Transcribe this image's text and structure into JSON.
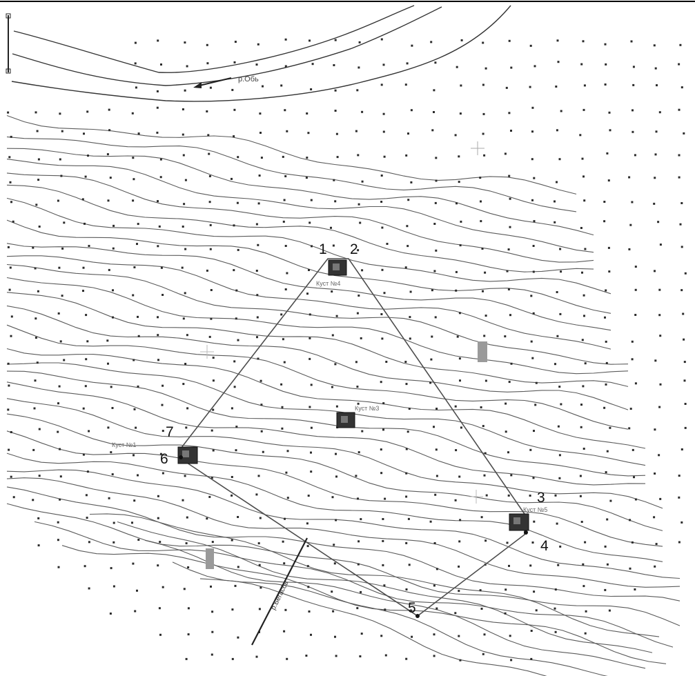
{
  "map": {
    "river_label": "р.Обь",
    "road_label": "р.Бегасов",
    "vertices": [
      {
        "id": "v1",
        "label": "1"
      },
      {
        "id": "v2",
        "label": "2"
      },
      {
        "id": "v3",
        "label": "3"
      },
      {
        "id": "v4",
        "label": "4"
      },
      {
        "id": "v5",
        "label": "5"
      },
      {
        "id": "v6",
        "label": "6"
      },
      {
        "id": "v7",
        "label": "7"
      }
    ],
    "wells": [
      {
        "id": "well-a",
        "label": "Куст №4"
      },
      {
        "id": "well-b",
        "label": "Куст №3"
      },
      {
        "id": "well-c",
        "label": "Куст №1"
      },
      {
        "id": "well-d",
        "label": "Куст №5"
      }
    ],
    "colors": {
      "contour": "#5a5a5a",
      "boundary": "#4d4d4d",
      "background": "#ffffff"
    }
  }
}
